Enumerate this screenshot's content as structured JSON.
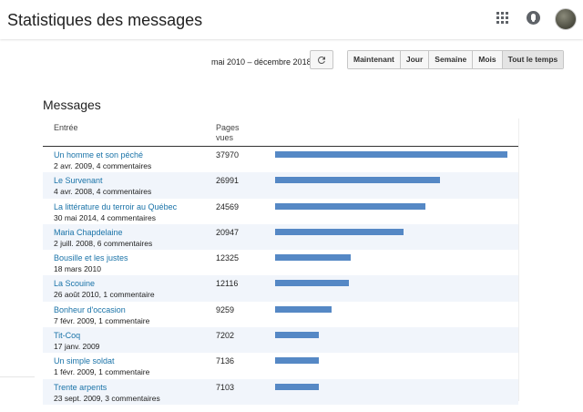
{
  "header": {
    "title": "Statistiques des messages"
  },
  "toolbar": {
    "date_range": "mai 2010 – décembre 2018",
    "periods": [
      {
        "label": "Maintenant",
        "active": false
      },
      {
        "label": "Jour",
        "active": false
      },
      {
        "label": "Semaine",
        "active": false
      },
      {
        "label": "Mois",
        "active": false
      },
      {
        "label": "Tout le temps",
        "active": true
      }
    ]
  },
  "messages": {
    "section_title": "Messages",
    "col_entry": "Entrée",
    "col_views": "Pages vues",
    "bar_color": "#5588c5",
    "link_color": "#1a73a8",
    "rows": [
      {
        "title": "Un homme et son péché",
        "meta": "2 avr. 2009, 4 commentaires",
        "views": "37970",
        "count": 37970
      },
      {
        "title": "Le Survenant",
        "meta": "4 avr. 2008, 4 commentaires",
        "views": "26991",
        "count": 26991
      },
      {
        "title": "La littérature du terroir au Québec",
        "meta": "30 mai 2014, 4 commentaires",
        "views": "24569",
        "count": 24569
      },
      {
        "title": "Maria Chapdelaine",
        "meta": "2 juill. 2008, 6 commentaires",
        "views": "20947",
        "count": 20947
      },
      {
        "title": "Bousille et les justes",
        "meta": "18 mars 2010",
        "views": "12325",
        "count": 12325
      },
      {
        "title": "La Scouine",
        "meta": "26 août 2010, 1 commentaire",
        "views": "12116",
        "count": 12116
      },
      {
        "title": "Bonheur d'occasion",
        "meta": "7 févr. 2009, 1 commentaire",
        "views": "9259",
        "count": 9259
      },
      {
        "title": "Tit-Coq",
        "meta": "17 janv. 2009",
        "views": "7202",
        "count": 7202
      },
      {
        "title": "Un simple soldat",
        "meta": "1 févr. 2009, 1 commentaire",
        "views": "7136",
        "count": 7136
      },
      {
        "title": "Trente arpents",
        "meta": "23 sept. 2009, 3 commentaires",
        "views": "7103",
        "count": 7103
      }
    ]
  }
}
